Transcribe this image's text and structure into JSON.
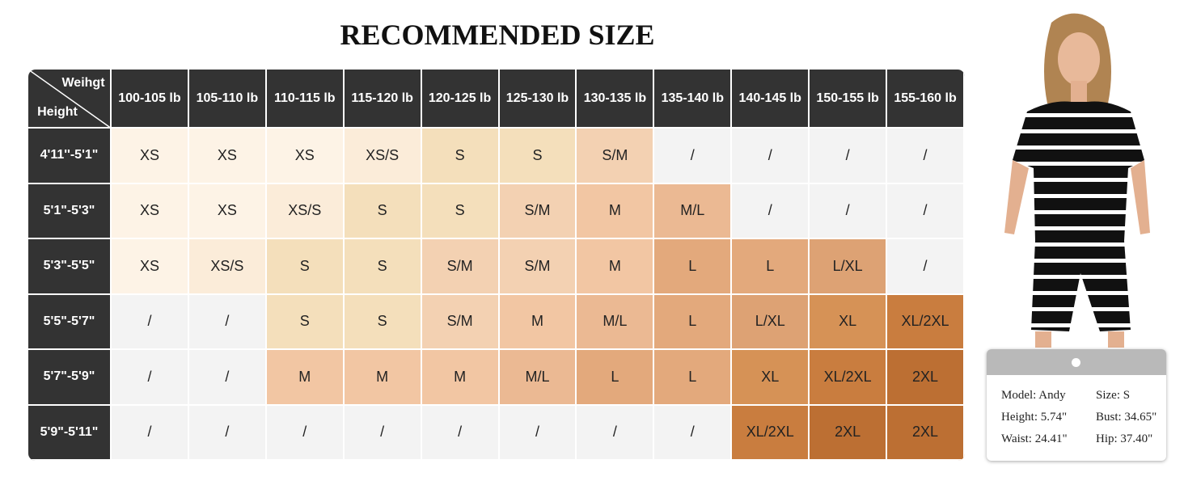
{
  "header": {
    "title": "RECOMMENDED SIZE"
  },
  "table": {
    "corner_top": "Weihgt",
    "corner_bottom": "Height",
    "columns": [
      "100-105 lb",
      "105-110 lb",
      "110-115 lb",
      "115-120 lb",
      "120-125 lb",
      "125-130 lb",
      "130-135 lb",
      "135-140 lb",
      "140-145 lb",
      "150-155 lb",
      "155-160 lb"
    ],
    "rows": [
      {
        "label": "4'11''-5'1\"",
        "cells": [
          "XS",
          "XS",
          "XS",
          "XS/S",
          "S",
          "S",
          "S/M",
          "/",
          "/",
          "/",
          "/"
        ]
      },
      {
        "label": "5'1\"-5'3\"",
        "cells": [
          "XS",
          "XS",
          "XS/S",
          "S",
          "S",
          "S/M",
          "M",
          "M/L",
          "/",
          "/",
          "/"
        ]
      },
      {
        "label": "5'3\"-5'5\"",
        "cells": [
          "XS",
          "XS/S",
          "S",
          "S",
          "S/M",
          "S/M",
          "M",
          "L",
          "L",
          "L/XL",
          "/"
        ]
      },
      {
        "label": "5'5\"-5'7\"",
        "cells": [
          "/",
          "/",
          "S",
          "S",
          "S/M",
          "M",
          "M/L",
          "L",
          "L/XL",
          "XL",
          "XL/2XL"
        ]
      },
      {
        "label": "5'7\"-5'9\"",
        "cells": [
          "/",
          "/",
          "M",
          "M",
          "M",
          "M/L",
          "L",
          "L",
          "XL",
          "XL/2XL",
          "2XL"
        ]
      },
      {
        "label": "5'9\"-5'11\"",
        "cells": [
          "/",
          "/",
          "/",
          "/",
          "/",
          "/",
          "/",
          "/",
          "XL/2XL",
          "2XL",
          "2XL"
        ]
      }
    ],
    "size_colors": {
      "XS": "#fdf3e6",
      "XS/S": "#fbecd9",
      "S": "#f4dfbb",
      "S/M": "#f3d1b2",
      "M": "#f2c6a3",
      "M/L": "#ebb993",
      "L": "#e3a97c",
      "L/XL": "#dda274",
      "XL": "#d69256",
      "XL/2XL": "#c97d3f",
      "2XL": "#bc6f33",
      "/": "#f3f3f3"
    }
  },
  "card": {
    "model": "Model: Andy",
    "size": "Size: S",
    "height": "Height: 5.74\"",
    "bust": "Bust: 34.65\"",
    "waist": "Waist: 24.41\"",
    "hip": "Hip: 37.40\""
  }
}
